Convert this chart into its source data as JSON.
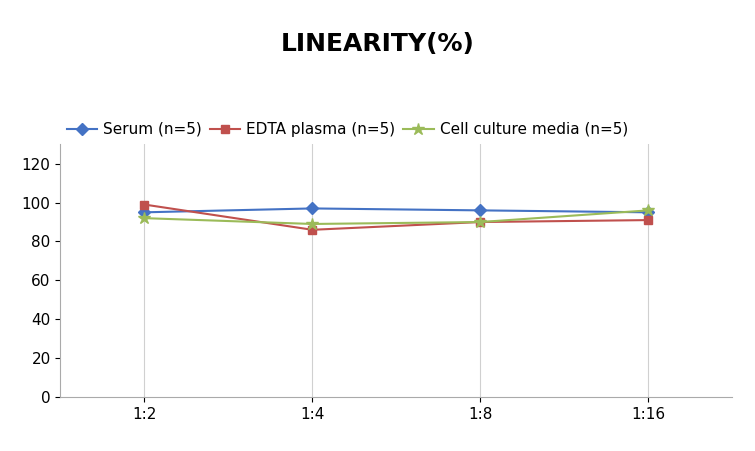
{
  "title": "LINEARITY(%)",
  "x_labels": [
    "1:2",
    "1:4",
    "1:8",
    "1:16"
  ],
  "x_positions": [
    0,
    1,
    2,
    3
  ],
  "series": [
    {
      "label": "Serum (n=5)",
      "values": [
        95,
        97,
        96,
        95
      ],
      "color": "#4472C4",
      "marker": "D",
      "markersize": 6
    },
    {
      "label": "EDTA plasma (n=5)",
      "values": [
        99,
        86,
        90,
        91
      ],
      "color": "#C0504D",
      "marker": "s",
      "markersize": 6
    },
    {
      "label": "Cell culture media (n=5)",
      "values": [
        92,
        89,
        90,
        96
      ],
      "color": "#9BBB59",
      "marker": "*",
      "markersize": 9
    }
  ],
  "ylim": [
    0,
    130
  ],
  "yticks": [
    0,
    20,
    40,
    60,
    80,
    100,
    120
  ],
  "title_fontsize": 18,
  "legend_fontsize": 11,
  "tick_fontsize": 11,
  "background_color": "#FFFFFF",
  "grid_color": "#D0D0D0"
}
